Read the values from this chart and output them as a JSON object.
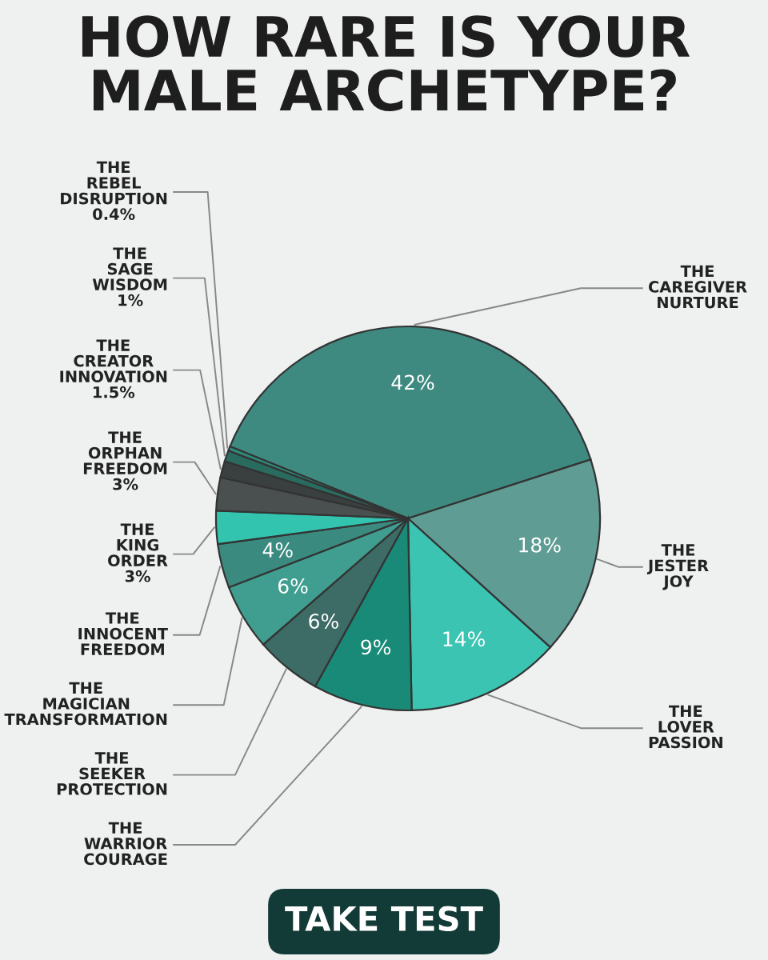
{
  "chart_data": {
    "type": "pie",
    "title": "HOW RARE IS YOUR\nMALE ARCHETYPE?",
    "categories": [
      "THE\nCAREGIVER\nNURTURE",
      "THE\nJESTER\nJOY",
      "THE\nLOVER\nPASSION",
      "THE\nWARRIOR\nCOURAGE",
      "THE\nSEEKER\nPROTECTION",
      "THE\nMAGICIAN\nTRANSFORMATION",
      "THE\nINNOCENT\nFREEDOM",
      "THE\nKING\nORDER",
      "THE\nORPHAN\nFREEDOM",
      "THE\nCREATOR\nINNOVATION",
      "THE\nSAGE\nWISDOM",
      "THE\nREBEL\nDISRUPTION"
    ],
    "values": [
      42,
      18,
      14,
      9,
      6,
      6,
      4,
      3,
      3,
      1.5,
      1,
      0.4
    ],
    "value_labels": [
      "42%",
      "18%",
      "14%",
      "9%",
      "6%",
      "6%",
      "4%",
      "3%",
      "3%",
      "1.5%",
      "1%",
      "0.4%"
    ],
    "colors": [
      "#3f8a80",
      "#5f9c93",
      "#3cc4b2",
      "#1a8a78",
      "#3d6b65",
      "#3f9e8f",
      "#3a8a80",
      "#33c4b0",
      "#4a4f50",
      "#3a3f40",
      "#2a6b60",
      "#2e8a7c"
    ],
    "annotations": [
      "TAKE TEST"
    ]
  }
}
